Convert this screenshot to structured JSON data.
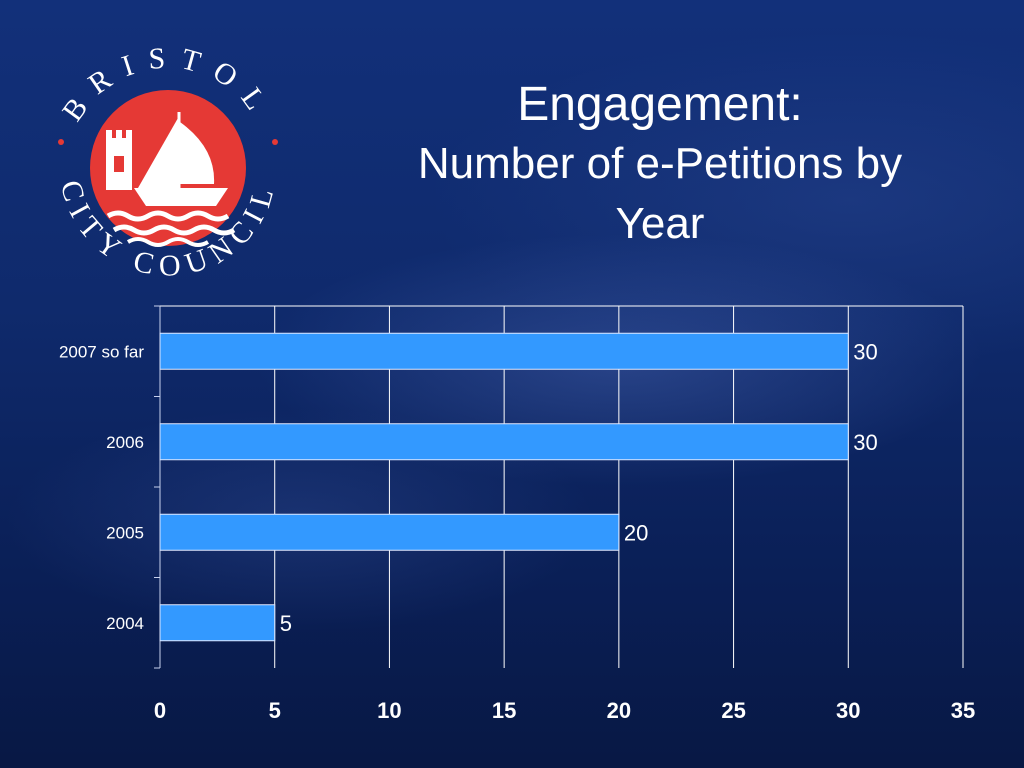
{
  "slide": {
    "title": "Engagement:",
    "subtitle_line1": "Number of e-Petitions by",
    "subtitle_line2": "Year",
    "logo_text": "BRISTOL CITY COUNCIL",
    "logo_icon": "bristol-city-council-seal-icon"
  },
  "colors": {
    "bar": "#3399ff",
    "gridline": "#ffffff",
    "text": "#ffffff",
    "logo_red": "#e53935"
  },
  "chart_data": {
    "type": "bar",
    "orientation": "horizontal",
    "categories": [
      "2004",
      "2005",
      "2006",
      "2007 so far"
    ],
    "values": [
      5,
      20,
      30,
      30
    ],
    "xlim": [
      0,
      35
    ],
    "xticks": [
      0,
      5,
      10,
      15,
      20,
      25,
      30,
      35
    ],
    "grid": true,
    "legend": "none",
    "data_labels": [
      "5",
      "20",
      "30",
      "30"
    ]
  }
}
